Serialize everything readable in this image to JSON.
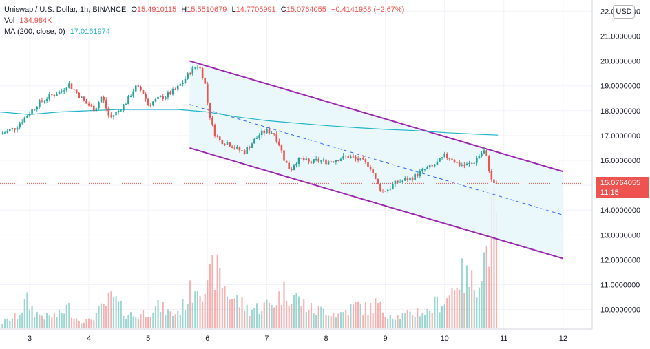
{
  "header": {
    "symbol": "Uniswap / U.S. Dollar, 1h, BINANCE",
    "o_label": "O",
    "o_value": "15.4910115",
    "h_label": "H",
    "h_value": "15.5510679",
    "l_label": "L",
    "l_value": "14.7705991",
    "c_label": "C",
    "c_value": "15.0764055",
    "change": "−0.4141958 (−2.67%)",
    "vol_label": "Vol",
    "vol_value": "134.984K",
    "ma_label": "MA (200, close, 0)",
    "ma_value": "17.0161974"
  },
  "currency_button": "USD",
  "last_price": {
    "value": "15.0764055",
    "countdown": "11:15"
  },
  "colors": {
    "up": "#26a69a",
    "down": "#ef5350",
    "ma": "#22b5c9",
    "channel": "#9c27b0",
    "channel_mid": "#2962ff",
    "channel_fill": "#e6f7fb"
  },
  "chart_data": {
    "type": "candlestick",
    "y_axis_labels": [
      "22.0000000",
      "21.0000000",
      "20.0000000",
      "19.0000000",
      "18.0000000",
      "17.0000000",
      "16.0000000",
      "15.0000000",
      "14.0000000",
      "13.0000000",
      "12.0000000",
      "11.0000000",
      "10.0000000"
    ],
    "y_axis_values": [
      22,
      21,
      20,
      19,
      18,
      17,
      16,
      15,
      14,
      13,
      12,
      11,
      10
    ],
    "x_axis_labels": [
      "3",
      "4",
      "5",
      "6",
      "7",
      "8",
      "9",
      "10",
      "11",
      "12"
    ],
    "x_axis_days": [
      3,
      4,
      5,
      6,
      7,
      8,
      9,
      10,
      11,
      12
    ],
    "ylim": [
      9.3,
      22.2
    ],
    "xlim": [
      2.5,
      13.0
    ],
    "price_path": [
      [
        2.5,
        17.05
      ],
      [
        2.75,
        17.3
      ],
      [
        2.95,
        17.8
      ],
      [
        3.15,
        18.3
      ],
      [
        3.35,
        18.6
      ],
      [
        3.55,
        18.8
      ],
      [
        3.65,
        19.1
      ],
      [
        3.8,
        18.7
      ],
      [
        3.95,
        18.3
      ],
      [
        4.1,
        18.05
      ],
      [
        4.22,
        18.6
      ],
      [
        4.35,
        17.7
      ],
      [
        4.5,
        18.0
      ],
      [
        4.65,
        18.4
      ],
      [
        4.78,
        18.95
      ],
      [
        4.9,
        18.8
      ],
      [
        5.0,
        18.25
      ],
      [
        5.15,
        18.45
      ],
      [
        5.3,
        18.6
      ],
      [
        5.45,
        18.8
      ],
      [
        5.6,
        19.2
      ],
      [
        5.72,
        19.6
      ],
      [
        5.85,
        19.85
      ],
      [
        5.95,
        19.2
      ],
      [
        6.02,
        18.0
      ],
      [
        6.1,
        17.2
      ],
      [
        6.2,
        16.8
      ],
      [
        6.35,
        16.7
      ],
      [
        6.5,
        16.45
      ],
      [
        6.62,
        16.35
      ],
      [
        6.75,
        16.7
      ],
      [
        6.88,
        17.05
      ],
      [
        7.0,
        17.2
      ],
      [
        7.12,
        17.1
      ],
      [
        7.22,
        16.6
      ],
      [
        7.3,
        16.0
      ],
      [
        7.4,
        15.6
      ],
      [
        7.48,
        15.95
      ],
      [
        7.6,
        16.05
      ],
      [
        7.72,
        15.9
      ],
      [
        7.85,
        16.0
      ],
      [
        8.0,
        15.95
      ],
      [
        8.12,
        16.0
      ],
      [
        8.25,
        16.1
      ],
      [
        8.38,
        16.15
      ],
      [
        8.5,
        16.05
      ],
      [
        8.62,
        15.95
      ],
      [
        8.75,
        15.75
      ],
      [
        8.85,
        15.1
      ],
      [
        8.95,
        14.75
      ],
      [
        9.05,
        14.85
      ],
      [
        9.18,
        15.1
      ],
      [
        9.32,
        15.2
      ],
      [
        9.45,
        15.3
      ],
      [
        9.55,
        15.45
      ],
      [
        9.68,
        15.65
      ],
      [
        9.8,
        15.75
      ],
      [
        9.9,
        15.95
      ],
      [
        10.0,
        16.15
      ],
      [
        10.12,
        16.1
      ],
      [
        10.22,
        15.85
      ],
      [
        10.35,
        15.8
      ],
      [
        10.48,
        15.9
      ],
      [
        10.58,
        16.2
      ],
      [
        10.68,
        16.4
      ],
      [
        10.73,
        15.9
      ],
      [
        10.78,
        15.3
      ],
      [
        10.82,
        14.9
      ],
      [
        10.86,
        15.5
      ],
      [
        10.9,
        15.08
      ]
    ],
    "ma_line": [
      [
        2.5,
        17.95
      ],
      [
        3.0,
        17.85
      ],
      [
        3.5,
        17.95
      ],
      [
        4.0,
        18.0
      ],
      [
        4.5,
        18.05
      ],
      [
        5.0,
        18.05
      ],
      [
        5.5,
        18.05
      ],
      [
        6.0,
        17.95
      ],
      [
        6.5,
        17.75
      ],
      [
        7.0,
        17.6
      ],
      [
        7.5,
        17.5
      ],
      [
        8.0,
        17.4
      ],
      [
        8.5,
        17.32
      ],
      [
        9.0,
        17.25
      ],
      [
        9.5,
        17.2
      ],
      [
        10.0,
        17.12
      ],
      [
        10.5,
        17.06
      ],
      [
        10.9,
        17.02
      ]
    ],
    "volume_path": [
      [
        2.5,
        8
      ],
      [
        2.8,
        20
      ],
      [
        2.95,
        45
      ],
      [
        3.1,
        25
      ],
      [
        3.3,
        18
      ],
      [
        3.5,
        22
      ],
      [
        3.65,
        35
      ],
      [
        3.8,
        15
      ],
      [
        4.0,
        12
      ],
      [
        4.2,
        30
      ],
      [
        4.4,
        50
      ],
      [
        4.6,
        25
      ],
      [
        4.8,
        20
      ],
      [
        5.0,
        28
      ],
      [
        5.2,
        35
      ],
      [
        5.4,
        22
      ],
      [
        5.55,
        30
      ],
      [
        5.7,
        55
      ],
      [
        5.85,
        80
      ],
      [
        6.0,
        60
      ],
      [
        6.1,
        95
      ],
      [
        6.2,
        85
      ],
      [
        6.35,
        55
      ],
      [
        6.5,
        45
      ],
      [
        6.7,
        30
      ],
      [
        6.9,
        35
      ],
      [
        7.1,
        40
      ],
      [
        7.3,
        60
      ],
      [
        7.45,
        55
      ],
      [
        7.6,
        40
      ],
      [
        7.8,
        28
      ],
      [
        8.0,
        30
      ],
      [
        8.2,
        22
      ],
      [
        8.4,
        32
      ],
      [
        8.55,
        38
      ],
      [
        8.7,
        30
      ],
      [
        8.85,
        40
      ],
      [
        9.0,
        25
      ],
      [
        9.2,
        20
      ],
      [
        9.4,
        22
      ],
      [
        9.55,
        28
      ],
      [
        9.7,
        25
      ],
      [
        9.85,
        40
      ],
      [
        10.0,
        45
      ],
      [
        10.1,
        55
      ],
      [
        10.2,
        85
      ],
      [
        10.35,
        80
      ],
      [
        10.5,
        70
      ],
      [
        10.62,
        100
      ],
      [
        10.72,
        125
      ],
      [
        10.82,
        180
      ],
      [
        10.9,
        140
      ]
    ],
    "channel": {
      "upper": [
        [
          5.7,
          20.0
        ],
        [
          12.0,
          15.55
        ]
      ],
      "lower": [
        [
          5.7,
          16.5
        ],
        [
          12.0,
          12.05
        ]
      ],
      "middle": [
        [
          5.7,
          18.25
        ],
        [
          12.0,
          13.8
        ]
      ]
    }
  }
}
